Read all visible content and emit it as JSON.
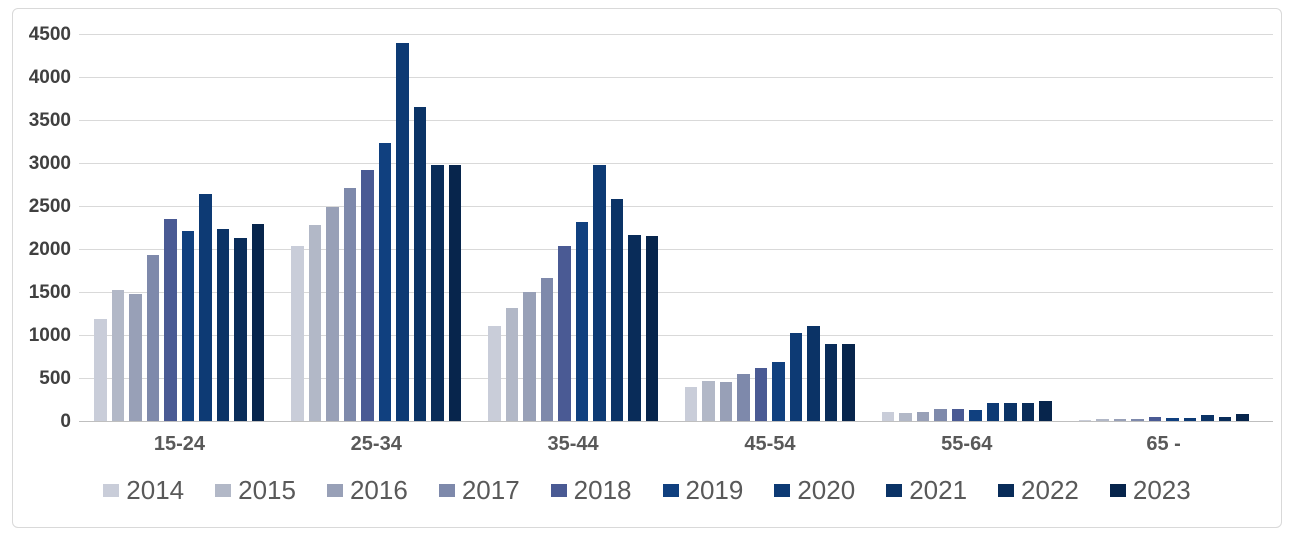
{
  "chart_data": {
    "type": "bar",
    "title": "",
    "xlabel": "",
    "ylabel": "",
    "categories": [
      "15-24",
      "25-34",
      "35-44",
      "45-54",
      "55-64",
      "65 -"
    ],
    "series": [
      {
        "name": "2014",
        "color": "#c9cdd9",
        "values": [
          1190,
          2040,
          1100,
          390,
          100,
          10
        ]
      },
      {
        "name": "2015",
        "color": "#b2b8c7",
        "values": [
          1520,
          2280,
          1310,
          460,
          90,
          25
        ]
      },
      {
        "name": "2016",
        "color": "#98a0b7",
        "values": [
          1480,
          2490,
          1500,
          450,
          110,
          20
        ]
      },
      {
        "name": "2017",
        "color": "#7e89ab",
        "values": [
          1930,
          2710,
          1660,
          550,
          135,
          25
        ]
      },
      {
        "name": "2018",
        "color": "#4a5a94",
        "values": [
          2350,
          2920,
          2030,
          620,
          140,
          45
        ]
      },
      {
        "name": "2019",
        "color": "#10407f",
        "values": [
          2210,
          3230,
          2310,
          690,
          125,
          30
        ]
      },
      {
        "name": "2020",
        "color": "#0d3a74",
        "values": [
          2640,
          4390,
          2980,
          1020,
          210,
          35
        ]
      },
      {
        "name": "2021",
        "color": "#0b3366",
        "values": [
          2230,
          3650,
          2580,
          1100,
          215,
          65
        ]
      },
      {
        "name": "2022",
        "color": "#092c59",
        "values": [
          2130,
          2980,
          2160,
          900,
          215,
          50
        ]
      },
      {
        "name": "2023",
        "color": "#07254c",
        "values": [
          2290,
          2980,
          2150,
          900,
          230,
          80
        ]
      }
    ],
    "ylim": [
      0,
      4500
    ],
    "ytick_step": 500,
    "ytick_labels": [
      "0",
      "500",
      "1000",
      "1500",
      "2000",
      "2500",
      "3000",
      "3500",
      "4000",
      "4500"
    ],
    "grid": true,
    "legend_position": "bottom"
  },
  "colors": {
    "background": "#ffffff",
    "card_border": "#d9d9d9",
    "gridline": "#d9d9d9",
    "baseline": "#bfbfbf",
    "ytick_text": "#404040",
    "xlabel_text": "#595959",
    "legend_text": "#595959"
  }
}
